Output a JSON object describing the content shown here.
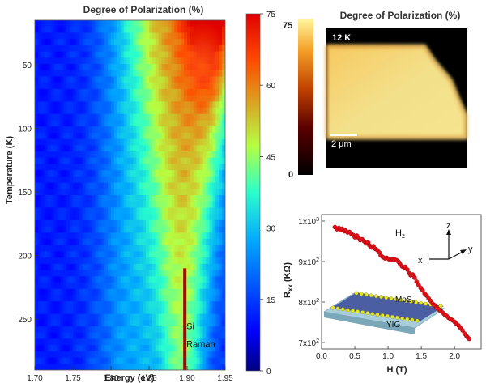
{
  "chart_data": [
    {
      "type": "heatmap",
      "title": "Degree of Polarization (%)",
      "xlabel": "Energy (eV)",
      "ylabel": "Temperature (K)",
      "xlim": [
        1.7,
        1.95
      ],
      "ylim": [
        15,
        290
      ],
      "x_ticks": [
        "1.70",
        "1.75",
        "1.80",
        "1.85",
        "1.90",
        "1.95"
      ],
      "y_ticks": [
        "50",
        "100",
        "150",
        "200",
        "250"
      ],
      "colorbar": {
        "min": 0,
        "max": 75,
        "ticks": [
          "75",
          "60",
          "45",
          "30",
          "15",
          "0"
        ]
      },
      "annotation": {
        "line1": "Si",
        "line2": "Raman",
        "energy_eV": 1.897
      },
      "features": {
        "peak_energy_eV": 1.935,
        "peak_temperature_K": 20,
        "peak_value_percent": 72,
        "background_value_percent": 11
      }
    },
    {
      "type": "heatmap",
      "title": "Degree of Polarization (%)",
      "label": "12 K",
      "scale_bar": "2 μm",
      "colorbar": {
        "min": 0,
        "max": 75,
        "ticks": [
          "75",
          "0"
        ]
      }
    },
    {
      "type": "scatter",
      "xlabel": "H (T)",
      "ylabel_main": "R",
      "ylabel_sub": "xx",
      "ylabel_unit": " (KΩ)",
      "xlim": [
        0,
        2.4
      ],
      "ylim": [
        700,
        1000
      ],
      "x_ticks": [
        "0.0",
        "0.5",
        "1.0",
        "1.5",
        "2.0"
      ],
      "y_ticks": [
        {
          "value": 1000,
          "mantissa": "1x10",
          "exp": "3"
        },
        {
          "value": 900,
          "mantissa": "9x10",
          "exp": "2"
        },
        {
          "value": 800,
          "mantissa": "8x10",
          "exp": "2"
        },
        {
          "value": 700,
          "mantissa": "7x10",
          "exp": "2"
        }
      ],
      "field_label": {
        "main": "H",
        "sub": "z"
      },
      "axes_labels": {
        "z": "z",
        "x": "x",
        "y": "y"
      },
      "inset": {
        "top_label": "MoS",
        "top_sub": "2",
        "bottom_label": "YIG"
      },
      "points": [
        [
          0.2,
          985
        ],
        [
          0.23,
          980
        ],
        [
          0.26,
          983
        ],
        [
          0.28,
          978
        ],
        [
          0.31,
          981
        ],
        [
          0.34,
          975
        ],
        [
          0.36,
          977
        ],
        [
          0.39,
          972
        ],
        [
          0.42,
          973
        ],
        [
          0.45,
          968
        ],
        [
          0.48,
          965
        ],
        [
          0.5,
          960
        ],
        [
          0.53,
          964
        ],
        [
          0.56,
          957
        ],
        [
          0.58,
          953
        ],
        [
          0.61,
          955
        ],
        [
          0.64,
          950
        ],
        [
          0.67,
          945
        ],
        [
          0.7,
          947
        ],
        [
          0.72,
          940
        ],
        [
          0.75,
          935
        ],
        [
          0.78,
          938
        ],
        [
          0.81,
          931
        ],
        [
          0.84,
          928
        ],
        [
          0.87,
          922
        ],
        [
          0.89,
          915
        ],
        [
          0.92,
          911
        ],
        [
          0.95,
          908
        ],
        [
          0.98,
          909
        ],
        [
          1.01,
          906
        ],
        [
          1.04,
          904
        ],
        [
          1.07,
          906
        ],
        [
          1.1,
          905
        ],
        [
          1.13,
          903
        ],
        [
          1.16,
          899
        ],
        [
          1.18,
          894
        ],
        [
          1.21,
          888
        ],
        [
          1.24,
          885
        ],
        [
          1.26,
          887
        ],
        [
          1.29,
          880
        ],
        [
          1.32,
          871
        ],
        [
          1.34,
          866
        ],
        [
          1.37,
          868
        ],
        [
          1.4,
          860
        ],
        [
          1.43,
          850
        ],
        [
          1.46,
          842
        ],
        [
          1.49,
          835
        ],
        [
          1.52,
          829
        ],
        [
          1.55,
          821
        ],
        [
          1.58,
          816
        ],
        [
          1.61,
          809
        ],
        [
          1.64,
          803
        ],
        [
          1.67,
          796
        ],
        [
          1.7,
          792
        ],
        [
          1.73,
          786
        ],
        [
          1.76,
          782
        ],
        [
          1.79,
          778
        ],
        [
          1.82,
          774
        ],
        [
          1.85,
          769
        ],
        [
          1.88,
          766
        ],
        [
          1.91,
          761
        ],
        [
          1.94,
          758
        ],
        [
          1.97,
          755
        ],
        [
          2.0,
          751
        ],
        [
          2.03,
          746
        ],
        [
          2.06,
          742
        ],
        [
          2.09,
          736
        ],
        [
          2.12,
          730
        ],
        [
          2.15,
          722
        ],
        [
          2.18,
          716
        ],
        [
          2.2,
          712
        ],
        [
          2.22,
          709
        ]
      ]
    }
  ]
}
